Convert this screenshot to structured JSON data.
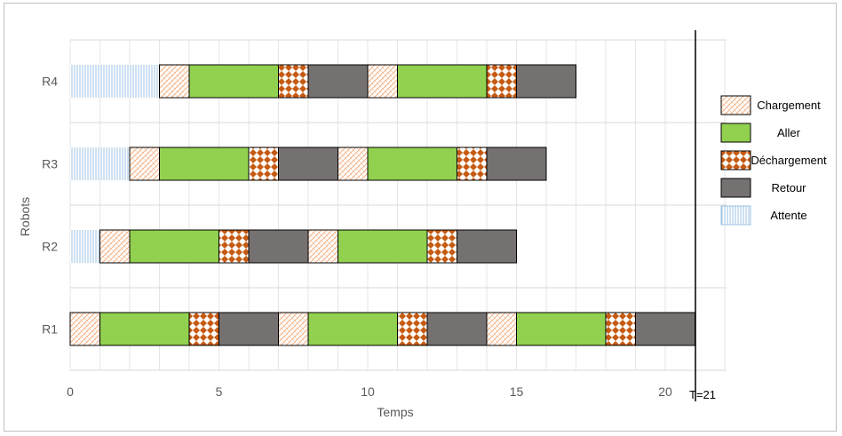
{
  "chart_data": {
    "type": "gantt",
    "xlabel": "Temps",
    "ylabel": "Robots",
    "xlim": [
      0,
      22
    ],
    "xticks": [
      0,
      5,
      10,
      15,
      20
    ],
    "categories": [
      "R1",
      "R2",
      "R3",
      "R4"
    ],
    "phase_types": [
      {
        "key": "chargement",
        "label": "Chargement"
      },
      {
        "key": "aller",
        "label": "Aller"
      },
      {
        "key": "dechargement",
        "label": "Déchargement"
      },
      {
        "key": "retour",
        "label": "Retour"
      },
      {
        "key": "attente",
        "label": "Attente"
      }
    ],
    "colors": {
      "aller": "#92d050",
      "retour": "#767171",
      "chargement_stroke": "#f4b183",
      "dechargement_fill": "#c55a11",
      "attente_stroke": "#9dc3e6"
    },
    "series": [
      {
        "robot": "R1",
        "segments": [
          {
            "type": "chargement",
            "start": 0,
            "end": 1
          },
          {
            "type": "aller",
            "start": 1,
            "end": 4
          },
          {
            "type": "dechargement",
            "start": 4,
            "end": 5
          },
          {
            "type": "retour",
            "start": 5,
            "end": 7
          },
          {
            "type": "chargement",
            "start": 7,
            "end": 8
          },
          {
            "type": "aller",
            "start": 8,
            "end": 11
          },
          {
            "type": "dechargement",
            "start": 11,
            "end": 12
          },
          {
            "type": "retour",
            "start": 12,
            "end": 14
          },
          {
            "type": "chargement",
            "start": 14,
            "end": 15
          },
          {
            "type": "aller",
            "start": 15,
            "end": 18
          },
          {
            "type": "dechargement",
            "start": 18,
            "end": 19
          },
          {
            "type": "retour",
            "start": 19,
            "end": 21
          }
        ]
      },
      {
        "robot": "R2",
        "segments": [
          {
            "type": "attente",
            "start": 0,
            "end": 1
          },
          {
            "type": "chargement",
            "start": 1,
            "end": 2
          },
          {
            "type": "aller",
            "start": 2,
            "end": 5
          },
          {
            "type": "dechargement",
            "start": 5,
            "end": 6
          },
          {
            "type": "retour",
            "start": 6,
            "end": 8
          },
          {
            "type": "chargement",
            "start": 8,
            "end": 9
          },
          {
            "type": "aller",
            "start": 9,
            "end": 12
          },
          {
            "type": "dechargement",
            "start": 12,
            "end": 13
          },
          {
            "type": "retour",
            "start": 13,
            "end": 15
          }
        ]
      },
      {
        "robot": "R3",
        "segments": [
          {
            "type": "attente",
            "start": 0,
            "end": 2
          },
          {
            "type": "chargement",
            "start": 2,
            "end": 3
          },
          {
            "type": "aller",
            "start": 3,
            "end": 6
          },
          {
            "type": "dechargement",
            "start": 6,
            "end": 7
          },
          {
            "type": "retour",
            "start": 7,
            "end": 9
          },
          {
            "type": "chargement",
            "start": 9,
            "end": 10
          },
          {
            "type": "aller",
            "start": 10,
            "end": 13
          },
          {
            "type": "dechargement",
            "start": 13,
            "end": 14
          },
          {
            "type": "retour",
            "start": 14,
            "end": 16
          }
        ]
      },
      {
        "robot": "R4",
        "segments": [
          {
            "type": "attente",
            "start": 0,
            "end": 3
          },
          {
            "type": "chargement",
            "start": 3,
            "end": 4
          },
          {
            "type": "aller",
            "start": 4,
            "end": 7
          },
          {
            "type": "dechargement",
            "start": 7,
            "end": 8
          },
          {
            "type": "retour",
            "start": 8,
            "end": 10
          },
          {
            "type": "chargement",
            "start": 10,
            "end": 11
          },
          {
            "type": "aller",
            "start": 11,
            "end": 14
          },
          {
            "type": "dechargement",
            "start": 14,
            "end": 15
          },
          {
            "type": "retour",
            "start": 15,
            "end": 17
          }
        ]
      }
    ],
    "annotations": [
      {
        "x": 21,
        "label": "T=21"
      }
    ],
    "grid": true,
    "legend_position": "right"
  }
}
